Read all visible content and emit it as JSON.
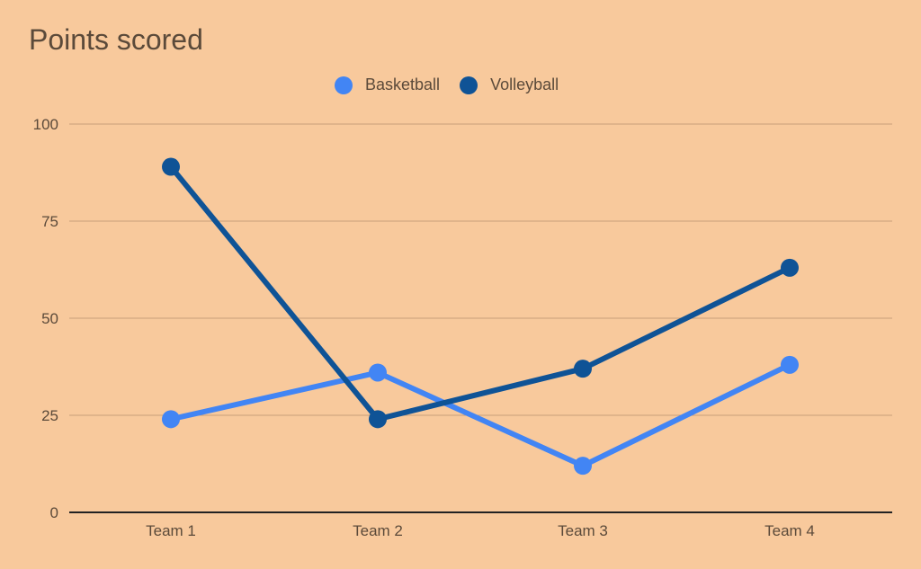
{
  "chart_data": {
    "type": "line",
    "title": "Points scored",
    "xlabel": "",
    "ylabel": "",
    "categories": [
      "Team 1",
      "Team 2",
      "Team 3",
      "Team 4"
    ],
    "series": [
      {
        "name": "Basketball",
        "color": "#4285f4",
        "values": [
          24,
          36,
          12,
          38
        ]
      },
      {
        "name": "Volleyball",
        "color": "#0f5396",
        "values": [
          89,
          24,
          37,
          63
        ]
      }
    ],
    "ylim": [
      0,
      100
    ],
    "yticks": [
      "0",
      "25",
      "50",
      "75",
      "100"
    ],
    "grid": true,
    "legend_position": "top"
  },
  "colors": {
    "background": "#f8c99c",
    "grid": "#c8a07a",
    "axis": "#222222",
    "text": "#5b4a3a"
  }
}
